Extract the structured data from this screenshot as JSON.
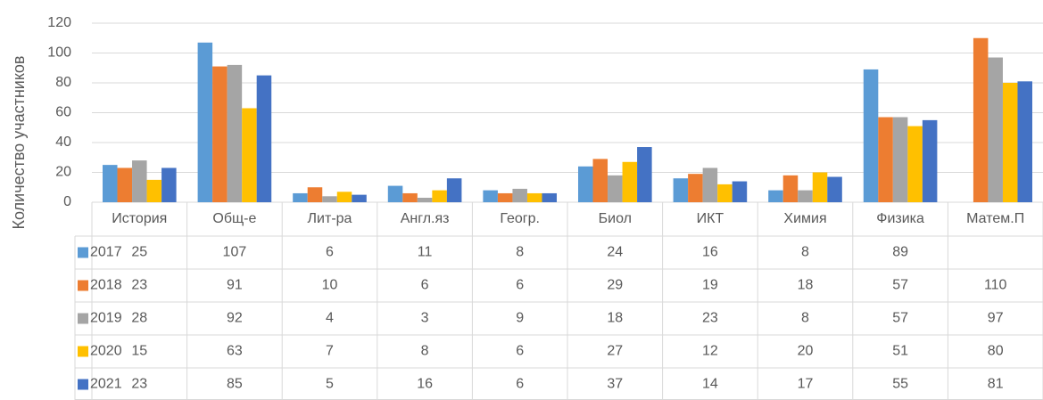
{
  "chart_data": {
    "type": "bar",
    "y_label": "Количество участников",
    "categories": [
      "История",
      "Общ-е",
      "Лит-ра",
      "Англ.яз",
      "Геогр.",
      "Биол",
      "ИКТ",
      "Химия",
      "Физика",
      "Матем.П"
    ],
    "series": [
      {
        "name": "2017",
        "color": "#5b9bd5",
        "values": [
          25,
          107,
          6,
          11,
          8,
          24,
          16,
          8,
          89,
          null
        ]
      },
      {
        "name": "2018",
        "color": "#ed7d31",
        "values": [
          23,
          91,
          10,
          6,
          6,
          29,
          19,
          18,
          57,
          110
        ]
      },
      {
        "name": "2019",
        "color": "#a5a5a5",
        "values": [
          28,
          92,
          4,
          3,
          9,
          18,
          23,
          8,
          57,
          97
        ]
      },
      {
        "name": "2020",
        "color": "#ffc000",
        "values": [
          15,
          63,
          7,
          8,
          6,
          27,
          12,
          20,
          51,
          80
        ]
      },
      {
        "name": "2021",
        "color": "#4472c4",
        "values": [
          23,
          85,
          5,
          16,
          6,
          37,
          14,
          17,
          55,
          81
        ]
      }
    ],
    "ylim": [
      0,
      120
    ],
    "yticks": [
      0,
      20,
      40,
      60,
      80,
      100,
      120
    ],
    "grid": true,
    "data_table": true
  }
}
